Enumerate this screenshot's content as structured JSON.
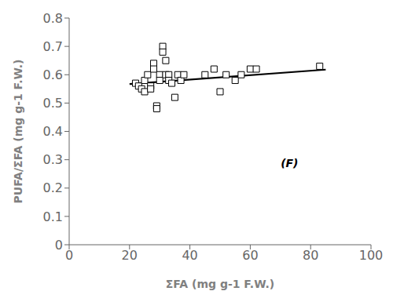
{
  "chart_data": {
    "type": "scatter",
    "x": [
      22,
      23,
      24,
      25,
      25,
      26,
      27,
      27,
      28,
      28,
      29,
      29,
      30,
      30,
      31,
      31,
      32,
      32,
      33,
      33,
      34,
      35,
      36,
      37,
      38,
      45,
      48,
      50,
      52,
      55,
      57,
      60,
      62,
      83
    ],
    "values": [
      0.57,
      0.56,
      0.55,
      0.58,
      0.54,
      0.6,
      0.56,
      0.55,
      0.64,
      0.62,
      0.49,
      0.48,
      0.6,
      0.58,
      0.7,
      0.68,
      0.65,
      0.6,
      0.6,
      0.58,
      0.57,
      0.52,
      0.6,
      0.58,
      0.6,
      0.6,
      0.62,
      0.54,
      0.6,
      0.58,
      0.6,
      0.62,
      0.62,
      0.63
    ],
    "marker": "square",
    "color": "black",
    "trendline": {
      "x": [
        20,
        85
      ],
      "values": [
        0.567,
        0.618
      ],
      "color": "black"
    },
    "xlabel": "ΣFA (mg g-1 F.W.)",
    "ylabel": "PUFA/ΣFA (mg g-1 F.W.)",
    "annotation": "(F)",
    "xlim": [
      0,
      100
    ],
    "ylim": [
      0,
      0.8
    ],
    "xticks": [
      0,
      20,
      40,
      60,
      80,
      100
    ],
    "yticks": [
      0,
      0.1,
      0.2,
      0.3,
      0.4,
      0.5,
      0.6,
      0.7,
      0.8
    ],
    "grid": false
  }
}
